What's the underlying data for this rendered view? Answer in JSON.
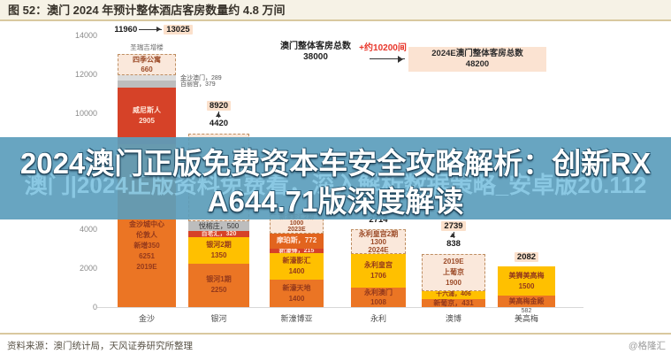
{
  "title_bar": {
    "text": "图 52：澳门 2024 年预计整体酒店客房数量约 4.8 万间"
  },
  "overlay": {
    "line1": "2024澳门正版免费资本车安全攻略解析：创新RX",
    "line2": "A644.71版深度解读",
    "watermark_text": "澳门|2024正版资料免费看，深入解析数据策略_安卓版20.112"
  },
  "footer": {
    "source_text": "资料来源：澳门统计局，天风证券研究所整理",
    "site_watermark": "@格隆汇"
  },
  "chart_data": {
    "type": "bar",
    "stacked": true,
    "title": "澳门 2024 年预计整体酒店客房数量约 4.8 万间",
    "ylim": [
      0,
      14000
    ],
    "yticks": [
      0,
      2000,
      4000,
      6000,
      8000,
      10000,
      12000,
      14000
    ],
    "grid": false,
    "annotation": {
      "left_label": "澳门整体客房总数",
      "left_value": "38000",
      "arrow_label": "+约10200间",
      "right_label": "2024E澳门整体客房总数",
      "right_value": "48200"
    },
    "categories": [
      "金沙",
      "银河",
      "新濠博亚",
      "永利",
      "澳博",
      "美高梅"
    ],
    "bars": [
      {
        "name": "金沙",
        "above_note": "圣瑞吉增楼",
        "header": {
          "mode": "row",
          "items": [
            {
              "text": "11960"
            },
            {
              "arrow": true
            },
            {
              "text": "13025",
              "hl": true
            }
          ]
        },
        "segments": [
          {
            "lines": [
              "金沙城中心",
              "伦敦人",
              "新增350",
              "6251",
              "2019E"
            ],
            "value": 6251,
            "color": "orange"
          },
          {
            "lines": [],
            "value": 2136,
            "color": "orange"
          },
          {
            "lines": [
              "威尼斯人",
              "2905"
            ],
            "value": 2905,
            "color": "red",
            "light": true
          },
          {
            "lines": [],
            "value": 379,
            "color": "gray",
            "ext": "百丽宫，379"
          },
          {
            "lines": [],
            "value": 289,
            "color": "lightgray",
            "ext": "金沙澳门，289"
          },
          {
            "lines": [
              "四季公寓",
              "660"
            ],
            "value": 1065,
            "color": "dashed"
          }
        ]
      },
      {
        "name": "银河",
        "header": {
          "mode": "col",
          "items": [
            {
              "text": "8920",
              "hl": true
            },
            {
              "arrow": true
            },
            {
              "text": "4420"
            }
          ]
        },
        "segments": [
          {
            "lines": [
              "银河1期",
              "2250"
            ],
            "value": 2250,
            "color": "orange"
          },
          {
            "lines": [
              "银河2期",
              "1350"
            ],
            "value": 1350,
            "color": "yellow"
          },
          {
            "lines": [
              "百老汇，320"
            ],
            "value": 320,
            "color": "red",
            "light": true
          },
          {
            "lines": [
              "悦榕庄，500"
            ],
            "value": 500,
            "color": "gray"
          },
          {
            "lines": [],
            "value": 4500,
            "color": "dashed"
          }
        ]
      },
      {
        "name": "新濠博亚",
        "header": null,
        "segments": [
          {
            "lines": [
              "新濠天地",
              "1400"
            ],
            "value": 1400,
            "color": "orange"
          },
          {
            "lines": [
              "新濠影汇",
              "1400"
            ],
            "value": 1400,
            "color": "yellow"
          },
          {
            "lines": [
              "新濠锋，215"
            ],
            "value": 215,
            "color": "red",
            "light": true
          },
          {
            "lines": [
              "摩珀斯，772"
            ],
            "value": 772,
            "color": "orange2",
            "light": true
          },
          {
            "lines": [
              "新濠影汇2期",
              "1000",
              "2023E"
            ],
            "value": 1000,
            "color": "dashed"
          }
        ]
      },
      {
        "name": "永利",
        "header": {
          "mode": "col",
          "items": [
            {
              "arrow": true
            },
            {
              "text": "2714"
            }
          ]
        },
        "segments": [
          {
            "lines": [
              "永利澳门",
              "1008"
            ],
            "value": 1008,
            "color": "orange"
          },
          {
            "lines": [
              "永利皇宫",
              "1706"
            ],
            "value": 1706,
            "color": "yellow"
          },
          {
            "lines": [
              "永利皇宫2期",
              "1300",
              "2024E"
            ],
            "value": 1300,
            "color": "dashed"
          }
        ]
      },
      {
        "name": "澳博",
        "header": {
          "mode": "col",
          "items": [
            {
              "text": "2739",
              "hl": true
            },
            {
              "arrow": true
            },
            {
              "text": "838"
            }
          ]
        },
        "segments": [
          {
            "lines": [
              "新葡京，431"
            ],
            "value": 431,
            "color": "orange"
          },
          {
            "lines": [
              "十六浦，406"
            ],
            "value": 406,
            "color": "yellow"
          },
          {
            "lines": [
              "2019E",
              "上葡京",
              "1900"
            ],
            "value": 1900,
            "color": "dashed"
          }
        ]
      },
      {
        "name": "美高梅",
        "below_note": "582",
        "header": {
          "mode": "col",
          "items": [
            {
              "text": "2082",
              "hl": true
            }
          ]
        },
        "segments": [
          {
            "lines": [
              "美高梅金殿"
            ],
            "value": 582,
            "color": "orange"
          },
          {
            "lines": [
              "美狮美高梅",
              "1500"
            ],
            "value": 1500,
            "color": "yellow"
          }
        ]
      }
    ]
  }
}
